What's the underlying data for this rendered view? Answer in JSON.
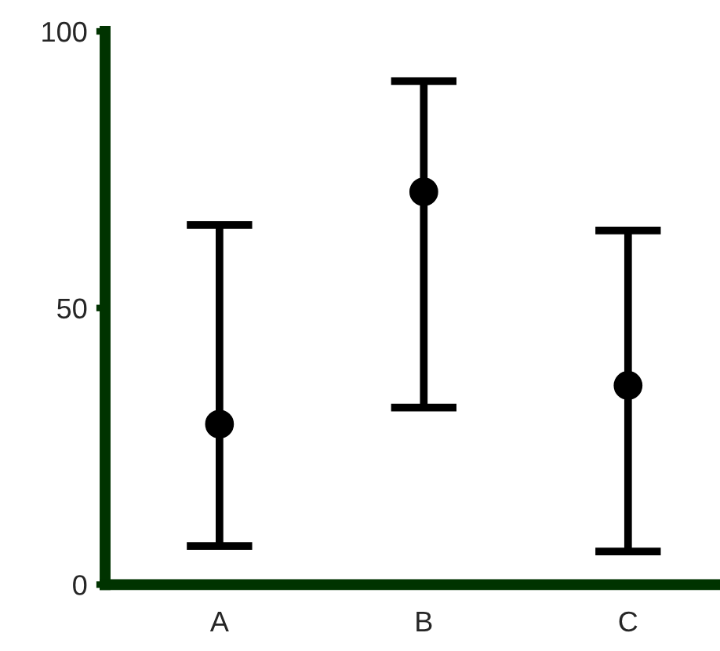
{
  "chart_data": {
    "type": "scatter",
    "categories": [
      "A",
      "B",
      "C"
    ],
    "series": [
      {
        "color": "#000000",
        "values": [
          29,
          71,
          36
        ],
        "errors": [
          [
            7,
            65
          ],
          [
            32,
            91
          ],
          [
            6,
            64
          ]
        ]
      }
    ],
    "ylim": [
      0,
      100
    ],
    "yticks": [
      0,
      50,
      100
    ],
    "marker": "circle",
    "grid": false
  }
}
